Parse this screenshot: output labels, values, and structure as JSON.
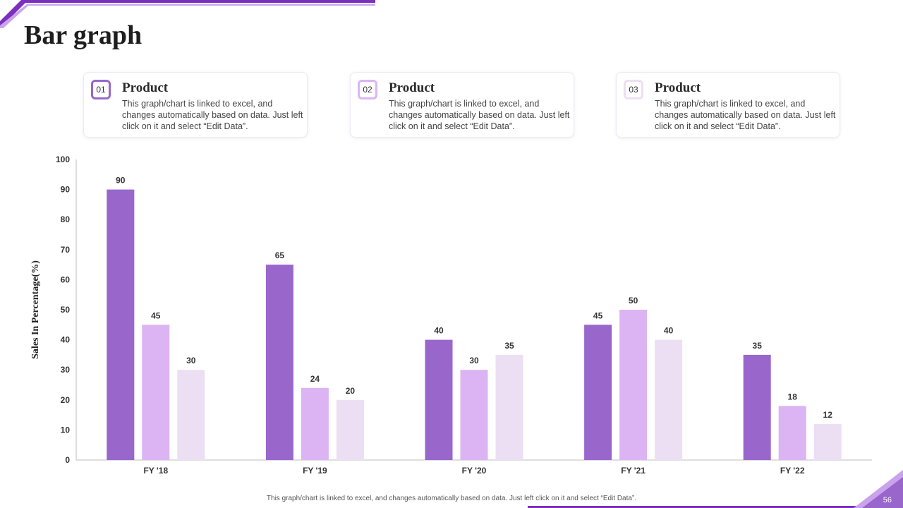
{
  "slide": {
    "title": "Bar graph",
    "page_number": "56",
    "footer_note": "This graph/chart is linked to excel, and changes automatically based on data. Just left click on it and select “Edit Data”."
  },
  "cards": [
    {
      "number": "01",
      "title": "Product",
      "text": "This graph/chart is linked to excel, and changes automatically based on data. Just left click on it and select “Edit Data”."
    },
    {
      "number": "02",
      "title": "Product",
      "text": "This graph/chart is linked to excel, and changes automatically based on data. Just left click on it and select “Edit Data”."
    },
    {
      "number": "03",
      "title": "Product",
      "text": "This graph/chart is linked to excel, and changes automatically based on data. Just left click on it and select “Edit Data”."
    }
  ],
  "colors": {
    "accent_dark": "#9966cc",
    "accent_mid": "#dcb4f4",
    "accent_light": "#ecdff4",
    "deco": "#7b2fbe"
  },
  "chart_data": {
    "type": "bar",
    "title": "",
    "xlabel": "",
    "ylabel": "Sales In Percentage(%)",
    "categories": [
      "FY '18",
      "FY '19",
      "FY '20",
      "FY '21",
      "FY '22"
    ],
    "series": [
      {
        "name": "Product 01",
        "values": [
          90,
          65,
          40,
          45,
          35
        ]
      },
      {
        "name": "Product 02",
        "values": [
          45,
          24,
          30,
          50,
          18
        ]
      },
      {
        "name": "Product 03",
        "values": [
          30,
          20,
          35,
          40,
          12
        ]
      }
    ],
    "ylim": [
      0,
      100
    ],
    "yticks": [
      0,
      10,
      20,
      30,
      40,
      50,
      60,
      70,
      80,
      90,
      100
    ],
    "grid": false,
    "data_labels": true
  }
}
